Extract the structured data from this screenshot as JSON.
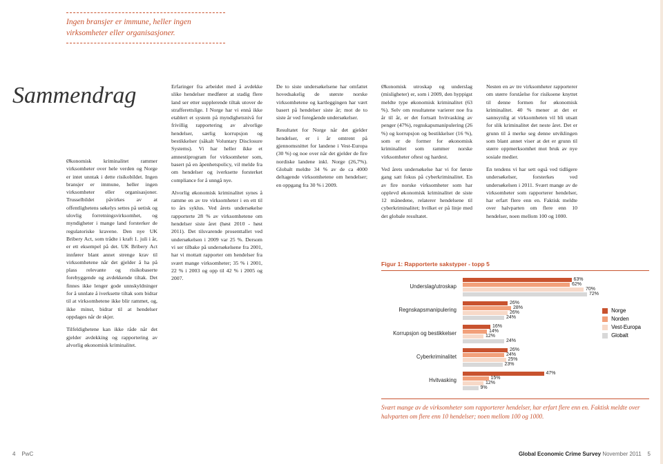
{
  "header_quote": "Ingen bransjer er immune, heller ingen virksomheter eller organisasjoner.",
  "title": "Sammendrag",
  "col1": {
    "p1": "Økonomisk kriminalitet rammer virksomheter over hele verden og Norge er intet unntak i dette risikobildet. Ingen bransjer er immune, heller ingen virksomheter eller organisasjoner. Trusselbildet påvirkes av at offentlighetens søkelys settes på uetisk og ulovlig forretningsvirksomhet, og myndigheter i mange land forsterker de regulatoriske kravene. Den nye UK Bribery Act, som trådte i kraft 1. juli i år, er ett eksempel på det. UK Bribery Act innfører blant annet strenge krav til virksomhetene når det gjelder å ha på plass relevante og risikobaserte forebyggende og avdekkende tiltak. Det finnes ikke lenger gode unnskyldninger for å unnlate å iverksette tiltak som bidrar til at virksomhetene ikke blir rammet, og, ikke minst, bidrar til at hendelser oppdages når de skjer.",
    "p2": "Tilfeldighetene kan ikke råde når det gjelder avdekking og rapportering av alvorlig økonomisk kriminalitet."
  },
  "col2": {
    "p1": "Erfaringer fra arbeidet med å avdekke slike hendelser medfører at stadig flere land ser etter supplerende tiltak utover de strafferettslige. I Norge har vi ennå ikke etablert et system på myndighetsnivå for frivillig rapportering av alvorlige hendelser, særlig korrupsjon og bestikkelser (såkalt Voluntary Disclosure Systems). Vi har heller ikke et amnestiprogram for virksomheter som, basert på en åpenhetspolicy, vil melde fra om hendelser og iverksette forsterket compliance for å unngå nye.",
    "p2": "Alvorlig økonomisk kriminalitet synes å ramme en av tre virksomheter i en ett til to års syklus. Ved årets undersøkelse rapporterte 28 % av virksomhetene om hendelser siste året (høst 2010 - høst 2011). Det tilsvarende prosenttallet ved undersøkelsen i 2009 var 25 %. Dersom vi ser tilbake på undersøkelsene fra 2001, har vi mottatt rapporter om hendelser fra svært mange virksomheter; 35 % i 2001, 22 % i 2003 og opp til 42 % i 2005 og 2007."
  },
  "col3": {
    "p1": "De to siste undersøkelsene har omfattet hovedsakelig de største norske virksomhetene og kartleggingen har vært basert på hendelser siste år; mot de to siste år ved foregående undersøkelser.",
    "p2": "Resultatet for Norge når det gjelder hendelser, er i år omtrent på gjennomsnittet for landene i Vest-Europa (30 %) og noe over når det gjelder de fire nordiske landene inkl. Norge (26,7%). Globalt meldte 34 % av de ca 4000 deltagende virksomhetene om hendelser; en oppgang fra 30 % i 2009."
  },
  "col4": {
    "p1": "Økonomisk utroskap og underslag (misligheter) er, som i 2009, den hyppigst meldte type økonomisk kriminalitet (63 %). Selv om resultatene varierer noe fra år til år, er det fortsatt hvitvasking av penger (47%), regnskapsmanipulering (26 %) og korrupsjon og bestikkelser (16 %), som er de former for økonomisk kriminalitet som rammer norske virksomheter oftest og hardest.",
    "p2": "Ved årets undersøkelse har vi for første gang satt fokus på cyberkriminalitet. En av fire norske virksomheter som har opplevd økonomisk kriminalitet de siste 12 månedene, relaterer hendelsene til cyberkriminalitet; hvilket er på linje med det globale resultatet."
  },
  "col5": {
    "p1": "Nesten en av tre virksomheter rapporterer om større forståelse for risikoene knyttet til denne formen for økonomisk kriminalitet. 40 % mener at det er sannsynlig at virksomheten vil bli utsatt for slik kriminalitet det neste året. Det er grunn til å merke seg denne utviklingen som blant annet viser at det er grunn til større oppmerksomhet mot bruk av nye sosiale medier.",
    "p2": "En tendens vi har sett også ved tidligere undersøkelser, forsterkes ved undersøkelsen i 2011. Svært mange av de virksomheter som rapporterer hendelser, har erfart flere enn en. Faktisk meldte over halvparten om flere enn 10 hendelser, noen mellom 100 og 1000."
  },
  "chart": {
    "title": "Figur 1: Rapporterte sakstyper - topp 5",
    "colors": {
      "norge": "#c8522e",
      "norden": "#f2a07a",
      "vest": "#f7d9c8",
      "globalt": "#d8d8d8"
    },
    "rows": [
      {
        "label": "Underslag/utroskap",
        "v": [
          63,
          62,
          70,
          72
        ]
      },
      {
        "label": "Regnskapsmanipulering",
        "v": [
          26,
          28,
          26,
          24
        ]
      },
      {
        "label": "Korrupsjon og bestikkelser",
        "v": [
          16,
          14,
          12,
          24
        ]
      },
      {
        "label": "Cyberkriminalitet",
        "v": [
          26,
          24,
          25,
          23
        ]
      },
      {
        "label": "Hvitvasking",
        "v": [
          47,
          15,
          12,
          9
        ]
      }
    ],
    "legend": [
      "Norge",
      "Norden",
      "Vest-Europa",
      "Globalt"
    ]
  },
  "bottom_note": "Svært mange av de virksomheter som rapporterer hendelser, har erfart flere enn en. Faktisk meldte over halvparten om flere enn 10 hendelser; noen mellom 100 og 1000.",
  "footer": {
    "left_num": "4",
    "left_brand": "PwC",
    "right_title": "Global Economic Crime Survey",
    "right_date": "November 2011",
    "right_num": "5"
  }
}
